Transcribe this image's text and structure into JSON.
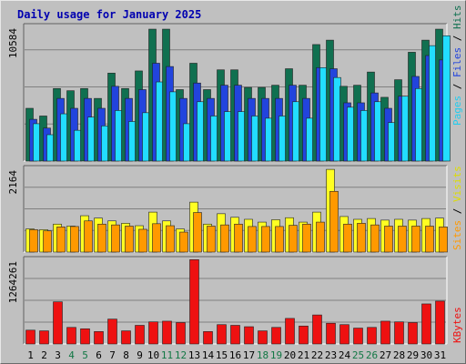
{
  "title": "Daily usage for January 2025",
  "colors": {
    "hits": "#107050",
    "files": "#2244dd",
    "pages": "#22ddff",
    "visits": "#ffff22",
    "sites": "#ff9900",
    "kbytes": "#ee1111",
    "weekday": "#000000",
    "weekend": "#117744",
    "title": "#0000b0"
  },
  "right_labels": {
    "hits_panel": [
      {
        "text": "Pages",
        "color": "#22ccee"
      },
      {
        "text": " / ",
        "color": "#000000"
      },
      {
        "text": "Files",
        "color": "#2244dd"
      },
      {
        "text": " / ",
        "color": "#000000"
      },
      {
        "text": "Hits",
        "color": "#107050"
      }
    ],
    "visits_panel": [
      {
        "text": "Sites",
        "color": "#ff9900"
      },
      {
        "text": " / ",
        "color": "#000000"
      },
      {
        "text": "Visits",
        "color": "#dddd00"
      }
    ],
    "kbytes_panel": [
      {
        "text": "KBytes",
        "color": "#ee1111"
      }
    ]
  },
  "chart_data": {
    "type": "bar",
    "title": "Daily usage for January 2025",
    "categories": [
      "1",
      "2",
      "3",
      "4",
      "5",
      "6",
      "7",
      "8",
      "9",
      "10",
      "11",
      "12",
      "13",
      "14",
      "15",
      "16",
      "17",
      "18",
      "19",
      "20",
      "21",
      "22",
      "23",
      "24",
      "25",
      "26",
      "27",
      "28",
      "29",
      "30",
      "31"
    ],
    "weekend_days": [
      "4",
      "5",
      "11",
      "12",
      "18",
      "19",
      "25",
      "26"
    ],
    "panels": [
      {
        "name": "hits_panel",
        "y_max_label": "10584",
        "ylim": [
          0,
          12500
        ],
        "series": [
          {
            "name": "Hits",
            "values": [
              4800,
              4100,
              6600,
              6400,
              6600,
              5700,
              8000,
              6600,
              8200,
              12000,
              12000,
              6500,
              8900,
              6500,
              8300,
              8300,
              6700,
              6700,
              6900,
              8400,
              6900,
              10600,
              11000,
              6800,
              6900,
              8100,
              5800,
              7400,
              9900,
              11000,
              12000
            ]
          },
          {
            "name": "Files",
            "values": [
              3800,
              3000,
              5700,
              4800,
              5700,
              4800,
              6800,
              5700,
              6500,
              8900,
              8600,
              5700,
              7100,
              5700,
              6900,
              6900,
              5700,
              5700,
              5700,
              6900,
              5700,
              8500,
              8400,
              5300,
              5300,
              6200,
              4800,
              5900,
              7700,
              9600,
              9200
            ]
          },
          {
            "name": "Pages",
            "values": [
              3400,
              2400,
              4300,
              2800,
              4000,
              3200,
              4600,
              3600,
              4400,
              7200,
              6300,
              3400,
              5400,
              4100,
              4500,
              4500,
              4100,
              3900,
              4100,
              5400,
              3900,
              8500,
              7600,
              4900,
              4600,
              5400,
              3500,
              5900,
              6600,
              10500,
              11400
            ]
          }
        ]
      },
      {
        "name": "visits_panel",
        "y_max_label": "2164",
        "ylim": [
          0,
          2164
        ],
        "series": [
          {
            "name": "Visits",
            "values": [
              580,
              560,
              700,
              650,
              910,
              850,
              780,
              720,
              660,
              1000,
              780,
              580,
              1250,
              700,
              960,
              870,
              820,
              750,
              810,
              860,
              750,
              1000,
              2070,
              890,
              820,
              840,
              800,
              820,
              800,
              840,
              850
            ]
          },
          {
            "name": "Sites",
            "values": [
              560,
              530,
              630,
              640,
              780,
              700,
              680,
              650,
              570,
              710,
              660,
              500,
              990,
              650,
              680,
              700,
              640,
              640,
              640,
              670,
              700,
              750,
              1520,
              700,
              720,
              680,
              650,
              650,
              650,
              650,
              630
            ]
          }
        ]
      },
      {
        "name": "kbytes_panel",
        "y_max_label": "1264261",
        "ylim": [
          0,
          1264261
        ],
        "series": [
          {
            "name": "KBytes",
            "values": [
              200000,
              190000,
              610000,
              240000,
              220000,
              180000,
              360000,
              190000,
              270000,
              320000,
              330000,
              310000,
              1220000,
              180000,
              280000,
              270000,
              250000,
              190000,
              240000,
              370000,
              260000,
              420000,
              300000,
              280000,
              230000,
              240000,
              330000,
              320000,
              310000,
              580000,
              620000
            ]
          }
        ]
      }
    ]
  }
}
